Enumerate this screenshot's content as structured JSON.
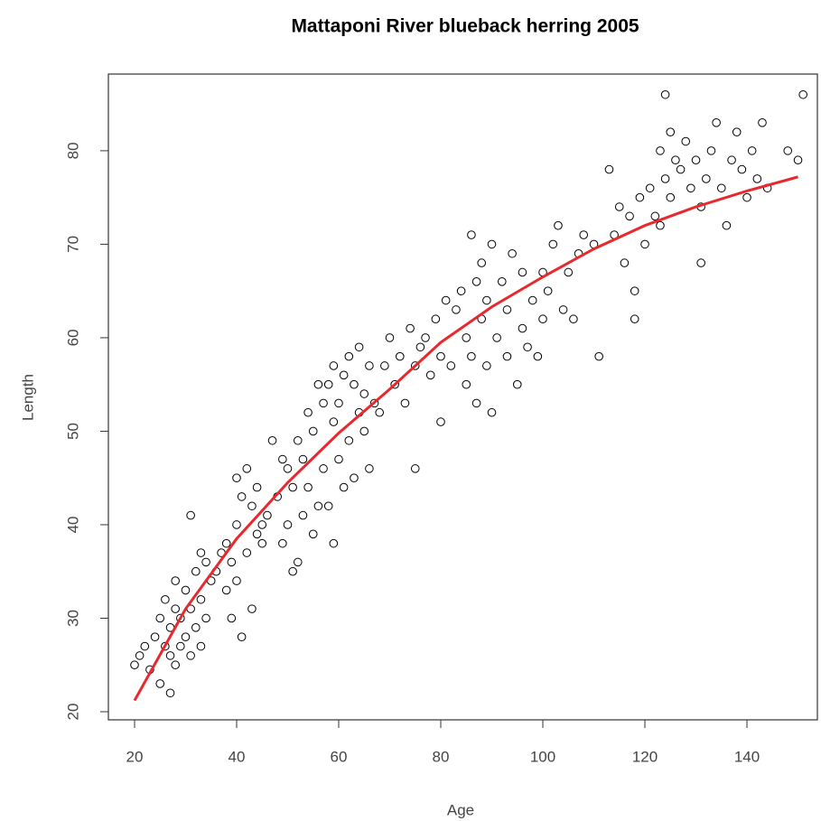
{
  "chart_data": {
    "type": "scatter",
    "title": "Mattaponi River blueback herring 2005",
    "x_label": "Age",
    "y_label": "Length",
    "xlim": [
      14.87,
      153.8
    ],
    "ylim": [
      19.13,
      88.2
    ],
    "xticks": [
      20,
      40,
      60,
      80,
      100,
      120,
      140
    ],
    "yticks": [
      20,
      30,
      40,
      50,
      60,
      70,
      80
    ],
    "points": {
      "color": "#000000",
      "x": [
        20,
        21,
        22,
        23,
        24,
        25,
        25,
        26,
        26,
        27,
        27,
        28,
        28,
        28,
        29,
        29,
        30,
        30,
        31,
        31,
        31,
        32,
        32,
        33,
        33,
        33,
        34,
        34,
        35,
        27,
        36,
        37,
        38,
        38,
        39,
        39,
        40,
        40,
        40,
        41,
        41,
        42,
        42,
        43,
        43,
        44,
        44,
        45,
        45,
        46,
        47,
        48,
        49,
        49,
        50,
        50,
        51,
        51,
        52,
        52,
        53,
        53,
        54,
        54,
        55,
        55,
        56,
        56,
        57,
        57,
        58,
        58,
        59,
        59,
        59,
        60,
        60,
        61,
        61,
        62,
        62,
        63,
        63,
        64,
        64,
        65,
        65,
        66,
        66,
        67,
        68,
        69,
        70,
        71,
        72,
        73,
        74,
        75,
        75,
        76,
        77,
        78,
        79,
        80,
        80,
        81,
        82,
        83,
        84,
        85,
        85,
        86,
        86,
        87,
        87,
        88,
        88,
        89,
        89,
        90,
        90,
        91,
        92,
        93,
        93,
        94,
        95,
        96,
        96,
        97,
        98,
        99,
        100,
        100,
        101,
        102,
        103,
        104,
        105,
        106,
        107,
        108,
        110,
        111,
        113,
        114,
        115,
        116,
        117,
        118,
        118,
        119,
        120,
        121,
        122,
        123,
        123,
        124,
        124,
        125,
        125,
        126,
        127,
        128,
        129,
        130,
        131,
        131,
        132,
        133,
        134,
        135,
        136,
        137,
        138,
        139,
        140,
        141,
        142,
        143,
        144,
        148,
        150,
        151
      ],
      "y": [
        25,
        26,
        27,
        24.5,
        28,
        23,
        30,
        27,
        32,
        22,
        29,
        25,
        31,
        34,
        27,
        30,
        28,
        33,
        41,
        26,
        31,
        35,
        29,
        37,
        27,
        32,
        36,
        30,
        34,
        26,
        35,
        37,
        33,
        38,
        30,
        36,
        45,
        34,
        40,
        28,
        43,
        37,
        46,
        31,
        42,
        39,
        44,
        40,
        38,
        41,
        49,
        43,
        38,
        47,
        40,
        46,
        35,
        44,
        36,
        49,
        41,
        47,
        52,
        44,
        39,
        50,
        42,
        55,
        46,
        53,
        42,
        55,
        38,
        51,
        57,
        47,
        53,
        44,
        56,
        49,
        58,
        45,
        55,
        52,
        59,
        50,
        54,
        46,
        57,
        53,
        52,
        57,
        60,
        55,
        58,
        53,
        61,
        46,
        57,
        59,
        60,
        56,
        62,
        51,
        58,
        64,
        57,
        63,
        65,
        55,
        60,
        71,
        58,
        66,
        53,
        62,
        68,
        57,
        64,
        52,
        70,
        60,
        66,
        58,
        63,
        69,
        55,
        67,
        61,
        59,
        64,
        58,
        67,
        62,
        65,
        70,
        72,
        63,
        67,
        62,
        69,
        71,
        70,
        58,
        78,
        71,
        74,
        68,
        73,
        62,
        65,
        75,
        70,
        76,
        73,
        80,
        72,
        86,
        77,
        75,
        82,
        79,
        78,
        81,
        76,
        79,
        68,
        74,
        77,
        80,
        83,
        76,
        72,
        79,
        82,
        78,
        75,
        80,
        77,
        83,
        76,
        80,
        79,
        86
      ]
    },
    "fit": {
      "color": "#e8282d",
      "x": [
        20,
        30,
        40,
        50,
        60,
        70,
        80,
        90,
        100,
        110,
        120,
        130,
        140,
        150
      ],
      "y": [
        21.2,
        31,
        38.5,
        44.5,
        49.8,
        54.5,
        59.5,
        63.3,
        66.5,
        69.5,
        72,
        74,
        75.7,
        77.2
      ]
    }
  }
}
